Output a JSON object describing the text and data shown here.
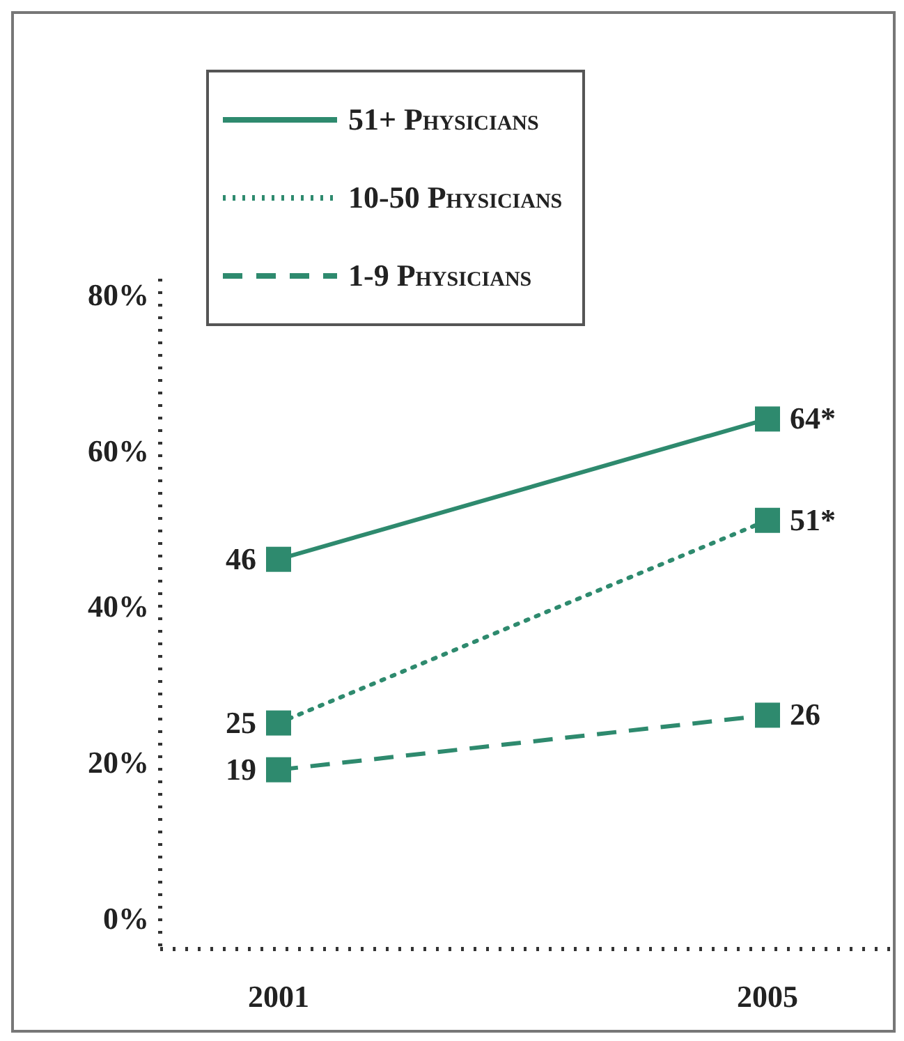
{
  "chart_data": {
    "type": "line",
    "categories": [
      "2001",
      "2005"
    ],
    "series": [
      {
        "name": "51+ Physicians",
        "color": "#2e8a6e",
        "values": [
          46,
          64
        ],
        "value_labels": [
          "46",
          "64*"
        ],
        "line_style": "solid"
      },
      {
        "name": "10-50 Physicians",
        "color": "#2e8a6e",
        "values": [
          25,
          51
        ],
        "value_labels": [
          "25",
          "51*"
        ],
        "line_style": "dotted"
      },
      {
        "name": "1-9 Physicians",
        "color": "#2e8a6e",
        "values": [
          19,
          26
        ],
        "value_labels": [
          "19",
          "26"
        ],
        "line_style": "dashed"
      }
    ],
    "ylim": [
      -4,
      82
    ],
    "yticks": [
      {
        "value": 0,
        "label": "0%"
      },
      {
        "value": 20,
        "label": "20%"
      },
      {
        "value": 40,
        "label": "40%"
      },
      {
        "value": 60,
        "label": "60%"
      },
      {
        "value": 80,
        "label": "80%"
      }
    ],
    "marker": "square",
    "legend": "top left"
  }
}
